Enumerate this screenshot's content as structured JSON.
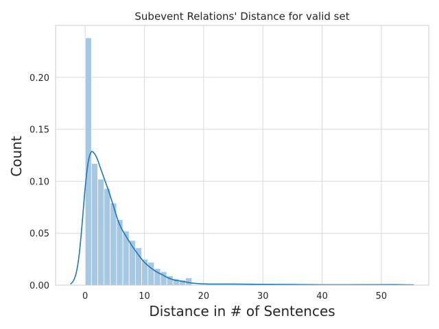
{
  "chart_data": {
    "type": "bar",
    "title": "Subevent Relations' Distance for valid set",
    "xlabel": "Distance in # of Sentences",
    "ylabel": "Count",
    "xlim": [
      -5,
      58
    ],
    "ylim": [
      0,
      0.25
    ],
    "x_ticks": [
      0,
      10,
      20,
      30,
      40,
      50
    ],
    "y_ticks": [
      0.0,
      0.05,
      0.1,
      0.15,
      0.2
    ],
    "grid": true,
    "bar_color": "#a6c8e2",
    "line_color": "#1f77b4",
    "histogram": {
      "bin_width": 1.06,
      "bin_start": 0,
      "values": [
        0.238,
        0.117,
        0.102,
        0.093,
        0.079,
        0.063,
        0.052,
        0.043,
        0.036,
        0.025,
        0.022,
        0.016,
        0.013,
        0.009,
        0.006,
        0.005,
        0.007
      ]
    },
    "kde": {
      "x": [
        -2.5,
        -2,
        -1.5,
        -1,
        -0.5,
        0,
        0.5,
        1,
        1.5,
        2,
        2.5,
        3,
        3.5,
        4,
        4.5,
        5,
        5.5,
        6,
        7,
        8,
        9,
        10,
        11,
        12,
        13,
        14,
        15,
        16,
        17,
        18,
        19,
        20,
        22,
        25,
        30,
        35,
        40,
        45,
        50,
        53,
        55.5
      ],
      "y": [
        0.001,
        0.004,
        0.012,
        0.03,
        0.06,
        0.094,
        0.118,
        0.128,
        0.127,
        0.122,
        0.114,
        0.106,
        0.098,
        0.09,
        0.081,
        0.072,
        0.063,
        0.056,
        0.046,
        0.037,
        0.029,
        0.022,
        0.017,
        0.013,
        0.01,
        0.007,
        0.005,
        0.004,
        0.003,
        0.002,
        0.0015,
        0.0012,
        0.001,
        0.001,
        0.0008,
        0.0006,
        0.0004,
        0.0004,
        0.0005,
        0.0005,
        0.0002
      ]
    }
  }
}
